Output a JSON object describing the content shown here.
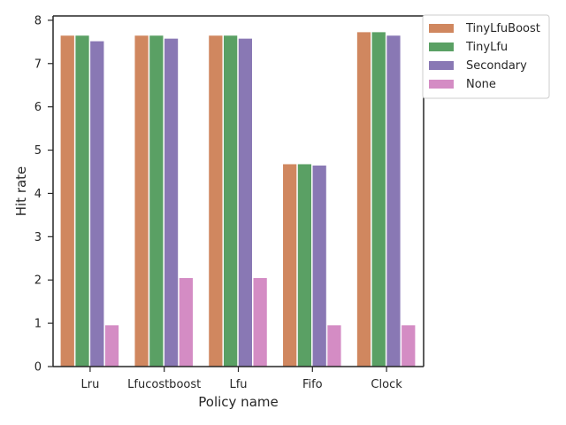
{
  "chart_data": {
    "type": "bar",
    "xlabel": "Policy name",
    "ylabel": "Hit rate",
    "categories": [
      "Lru",
      "Lfucostboost",
      "Lfu",
      "Fifo",
      "Clock"
    ],
    "series": [
      {
        "name": "TinyLfuBoost",
        "color": "#d0875f",
        "values": [
          7.65,
          7.65,
          7.65,
          4.68,
          7.73
        ]
      },
      {
        "name": "TinyLfu",
        "color": "#5aa064",
        "values": [
          7.65,
          7.65,
          7.65,
          4.68,
          7.73
        ]
      },
      {
        "name": "Secondary",
        "color": "#8978b4",
        "values": [
          7.52,
          7.58,
          7.58,
          4.65,
          7.65
        ]
      },
      {
        "name": "None",
        "color": "#d48cc4",
        "values": [
          0.96,
          2.05,
          2.05,
          0.96,
          0.96
        ]
      }
    ],
    "ylim": [
      0,
      8.1
    ],
    "yticks": [
      "0",
      "1",
      "2",
      "3",
      "4",
      "5",
      "6",
      "7",
      "8"
    ],
    "grid": false,
    "legend_position": "outside top-right"
  }
}
